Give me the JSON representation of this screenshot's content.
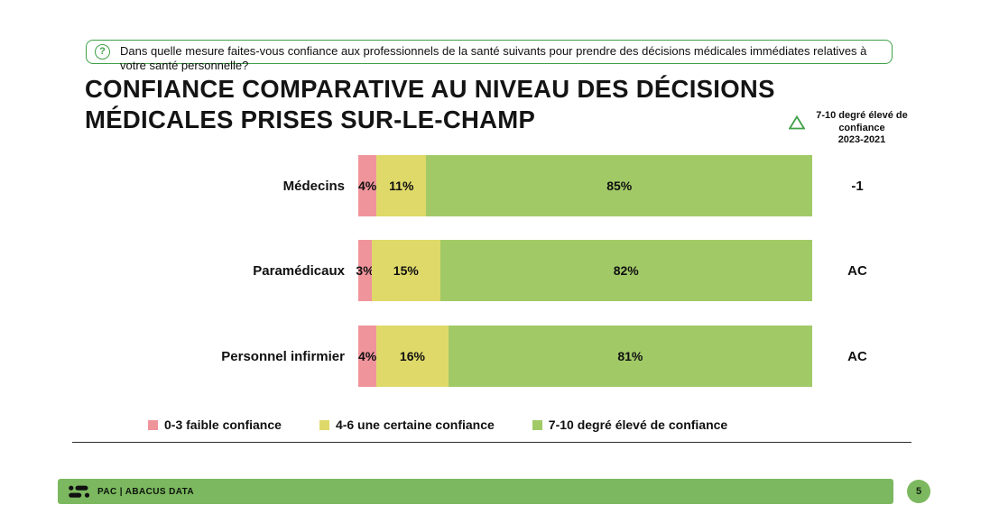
{
  "question_box": {
    "icon_glyph": "?",
    "text": "Dans quelle mesure faites-vous confiance aux professionnels de la santé suivants pour prendre des décisions médicales immédiates relatives à votre santé personnelle?"
  },
  "title": "CONFIANCE COMPARATIVE AU NIVEAU DES DÉCISIONS MÉDICALES PRISES SUR-LE-CHAMP",
  "delta_header": {
    "line1": "7-10 degré élevé de",
    "line2": "confiance",
    "line3": "2023-2021"
  },
  "chart_data": {
    "type": "bar",
    "orientation": "horizontal",
    "stacked": true,
    "unit": "%",
    "xlim": [
      0,
      100
    ],
    "categories": [
      "Médecins",
      "Paramédicaux",
      "Personnel infirmier"
    ],
    "series": [
      {
        "name": "0-3 faible confiance",
        "color": "#F0949C",
        "values": [
          4,
          3,
          4
        ]
      },
      {
        "name": "4-6 une certaine confiance",
        "color": "#DFD969",
        "values": [
          11,
          15,
          16
        ]
      },
      {
        "name": "7-10 degré élevé de confiance",
        "color": "#A1CA67",
        "values": [
          85,
          82,
          81
        ]
      }
    ],
    "delta_column": {
      "header": "7-10 degré élevé de confiance 2023-2021",
      "values": [
        "-1",
        "AC",
        "AC"
      ]
    },
    "legend_position": "bottom"
  },
  "footer": {
    "brand": "PAC | ABACUS DATA",
    "page_number": "5"
  },
  "colors": {
    "accent_green": "#3FA047",
    "footer_bar_green": "#7CB85F",
    "low_confidence": "#F0949C",
    "some_confidence": "#DFD969",
    "high_confidence": "#A1CA67"
  }
}
